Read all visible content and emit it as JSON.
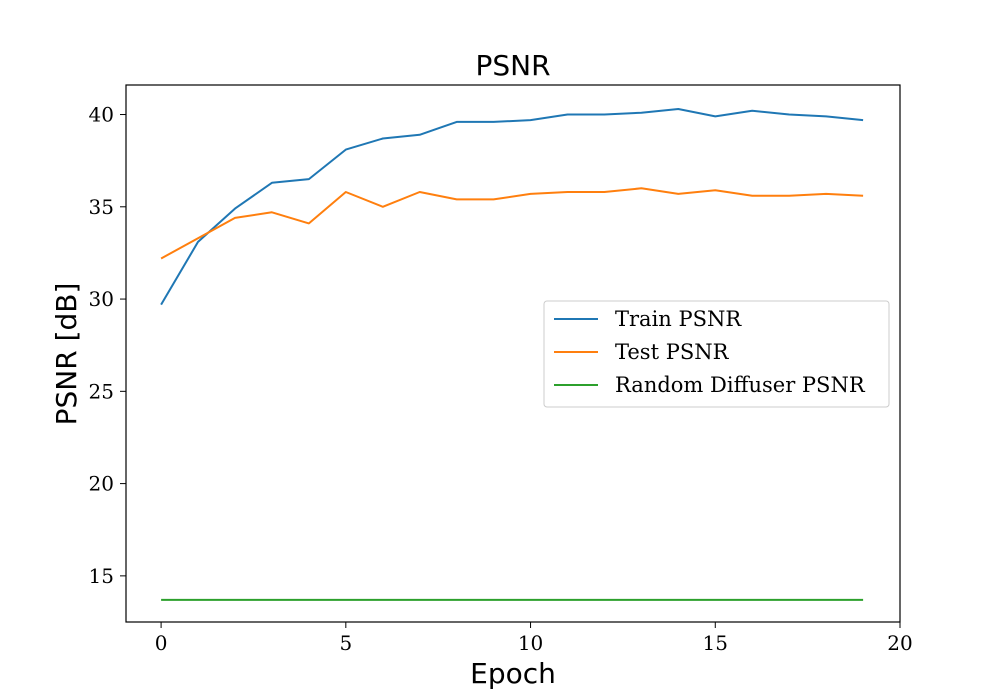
{
  "chart_data": {
    "type": "line",
    "title": "PSNR",
    "xlabel": "Epoch",
    "ylabel": "PSNR [dB]",
    "xlim": [
      -0.95,
      20
    ],
    "ylim": [
      12.5,
      41.6
    ],
    "xticks": [
      0,
      5,
      10,
      15,
      20
    ],
    "yticks": [
      15,
      20,
      25,
      30,
      35,
      40
    ],
    "grid": false,
    "legend_position": "center-right",
    "x": [
      0,
      1,
      2,
      3,
      4,
      5,
      6,
      7,
      8,
      9,
      10,
      11,
      12,
      13,
      14,
      15,
      16,
      17,
      18,
      19
    ],
    "series": [
      {
        "name": "Train PSNR",
        "color": "#1f77b4",
        "values": [
          29.7,
          33.1,
          34.9,
          36.3,
          36.5,
          38.1,
          38.7,
          38.9,
          39.6,
          39.6,
          39.7,
          40.0,
          40.0,
          40.1,
          40.3,
          39.9,
          40.2,
          40.0,
          39.9,
          39.7
        ]
      },
      {
        "name": "Test PSNR",
        "color": "#ff7f0e",
        "values": [
          32.2,
          33.3,
          34.4,
          34.7,
          34.1,
          35.8,
          35.0,
          35.8,
          35.4,
          35.4,
          35.7,
          35.8,
          35.8,
          36.0,
          35.7,
          35.9,
          35.6,
          35.6,
          35.7,
          35.6
        ]
      },
      {
        "name": "Random Diffuser PSNR",
        "color": "#2ca02c",
        "values": [
          13.7,
          13.7,
          13.7,
          13.7,
          13.7,
          13.7,
          13.7,
          13.7,
          13.7,
          13.7,
          13.7,
          13.7,
          13.7,
          13.7,
          13.7,
          13.7,
          13.7,
          13.7,
          13.7,
          13.7
        ]
      }
    ]
  }
}
